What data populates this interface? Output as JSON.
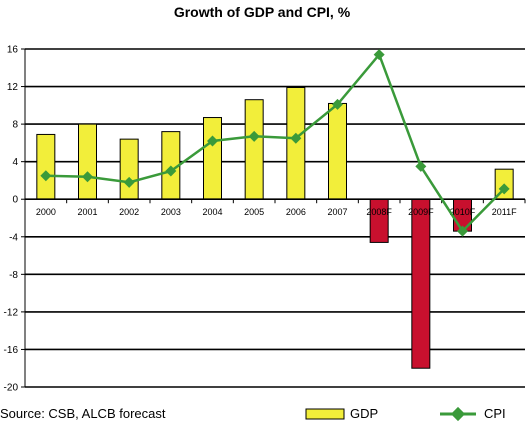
{
  "chart_data": {
    "type": "bar",
    "title": "Growth of GDP and CPI, %",
    "categories": [
      "2000",
      "2001",
      "2002",
      "2003",
      "2004",
      "2005",
      "2006",
      "2007",
      "2008F",
      "2009F",
      "2010F",
      "2011F"
    ],
    "series": [
      {
        "name": "GDP",
        "type": "bar",
        "values": [
          6.9,
          8.0,
          6.4,
          7.2,
          8.7,
          10.6,
          11.9,
          10.2,
          -4.6,
          -18.0,
          -3.4,
          3.2
        ],
        "color": "#f2ee3a",
        "negative_color": "#c8102e"
      },
      {
        "name": "CPI",
        "type": "line",
        "values": [
          2.5,
          2.4,
          1.8,
          3.0,
          6.2,
          6.7,
          6.5,
          10.1,
          15.4,
          3.5,
          -3.4,
          1.1
        ],
        "color": "#3a9a3a"
      }
    ],
    "y_ticks": [
      "16",
      "12",
      "8",
      "4",
      "0",
      "-4",
      "-8",
      "-12",
      "-16",
      "-20"
    ],
    "ylim": [
      -20,
      16
    ],
    "ytick_step": 4,
    "grid": true,
    "legend_position": "bottom",
    "source_note": "Source:  CSB, ALCB forecast"
  }
}
